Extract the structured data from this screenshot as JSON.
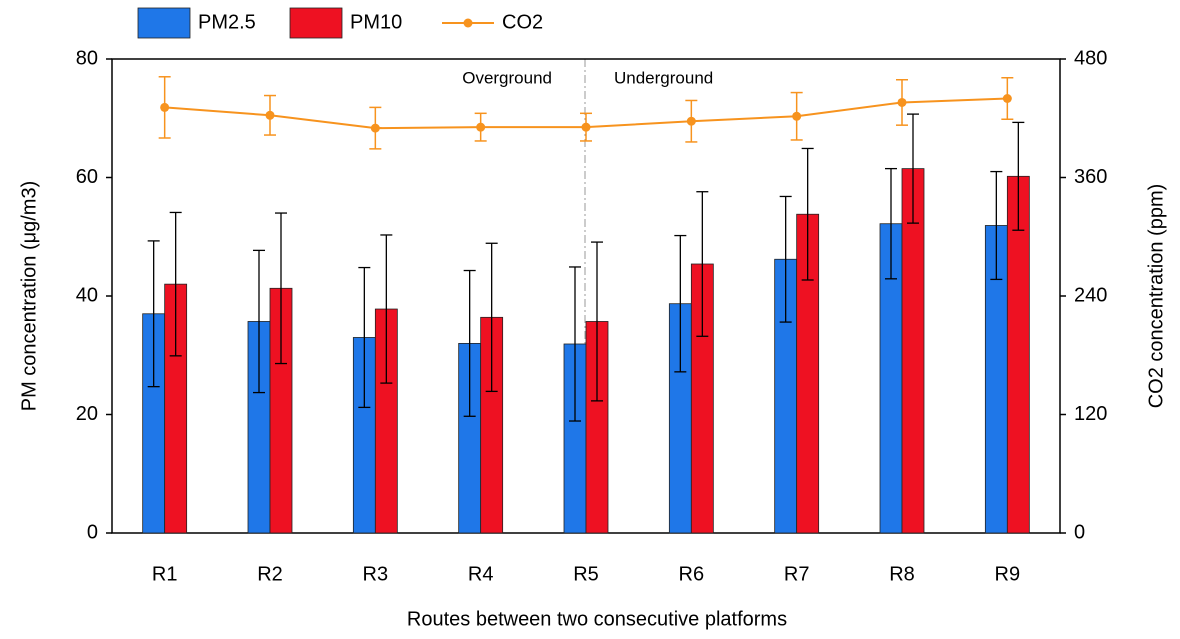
{
  "chart_data": {
    "type": "bar_line_dual_axis",
    "categories": [
      "R1",
      "R2",
      "R3",
      "R4",
      "R5",
      "R6",
      "R7",
      "R8",
      "R9"
    ],
    "series": [
      {
        "name": "PM2.5",
        "color": "#1f77e8",
        "kind": "bar",
        "values": [
          37,
          35.7,
          33,
          32,
          31.9,
          38.7,
          46.2,
          52.2,
          51.9
        ],
        "errors": [
          12.3,
          12,
          11.8,
          12.3,
          13,
          11.5,
          10.6,
          9.3,
          9.1
        ]
      },
      {
        "name": "PM10",
        "color": "#ee1122",
        "kind": "bar",
        "values": [
          42,
          41.3,
          37.8,
          36.4,
          35.7,
          45.4,
          53.8,
          61.5,
          60.2
        ],
        "errors": [
          12.1,
          12.7,
          12.5,
          12.5,
          13.4,
          12.2,
          11.1,
          9.2,
          9.1
        ]
      },
      {
        "name": "CO2",
        "color": "#f7931e",
        "kind": "line",
        "axis": "y2",
        "values": [
          431,
          423,
          410,
          411,
          411,
          417,
          422,
          436,
          440
        ],
        "errors": [
          31,
          20,
          21,
          14,
          14,
          21,
          24,
          23,
          21
        ]
      }
    ],
    "ylim": [
      0,
      80
    ],
    "yticks": [
      0,
      20,
      40,
      60,
      80
    ],
    "y2lim": [
      0,
      480
    ],
    "y2ticks": [
      0,
      120,
      240,
      360,
      480
    ],
    "xlabel": "Routes between two consecutive platforms",
    "ylabel": "PM concentration (μg/m3)",
    "y2label": "CO2 concentration (ppm)",
    "annotations": [
      "Overground",
      "Underground"
    ],
    "legend": "top-left"
  }
}
